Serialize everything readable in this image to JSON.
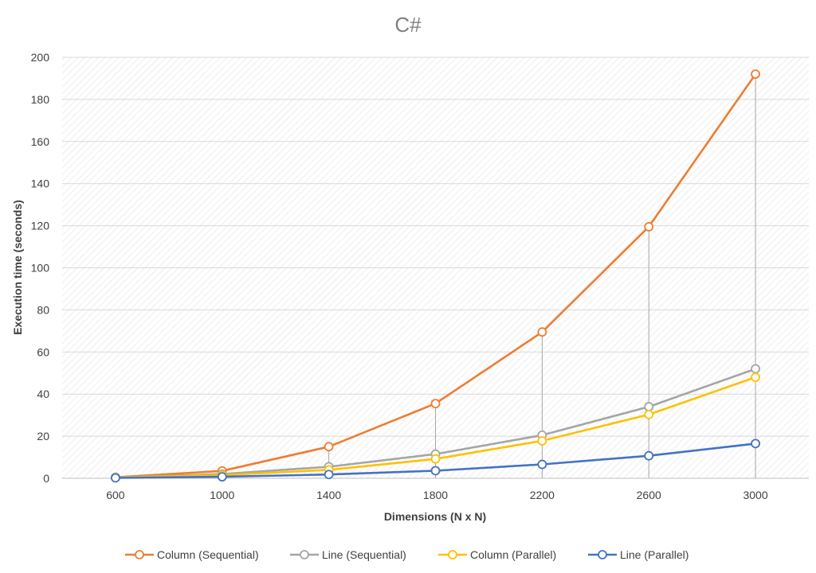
{
  "chart_data": {
    "type": "line",
    "title": "C#",
    "xlabel": "Dimensions (N x N)",
    "ylabel": "Execution time (seconds)",
    "categories": [
      "600",
      "1000",
      "1400",
      "1800",
      "2200",
      "2600",
      "3000"
    ],
    "ylim": [
      0,
      200
    ],
    "yticks": [
      0,
      20,
      40,
      60,
      80,
      100,
      120,
      140,
      160,
      180,
      200
    ],
    "grid": true,
    "drop_lines": true,
    "legend_position": "bottom",
    "series": [
      {
        "name": "Column (Sequential)",
        "color": "#ED7D31",
        "values": [
          0.5,
          3.5,
          15,
          35.5,
          69.5,
          119.5,
          192
        ]
      },
      {
        "name": "Line (Sequential)",
        "color": "#A5A5A5",
        "values": [
          0.4,
          2.0,
          5.5,
          11.5,
          20.5,
          34,
          52
        ]
      },
      {
        "name": "Column (Parallel)",
        "color": "#FFC000",
        "values": [
          0.3,
          1.5,
          4.0,
          9.2,
          17.8,
          30.3,
          48
        ]
      },
      {
        "name": "Line (Parallel)",
        "color": "#4472C4",
        "values": [
          0.2,
          0.7,
          1.8,
          3.6,
          6.6,
          10.7,
          16.5
        ]
      }
    ]
  }
}
